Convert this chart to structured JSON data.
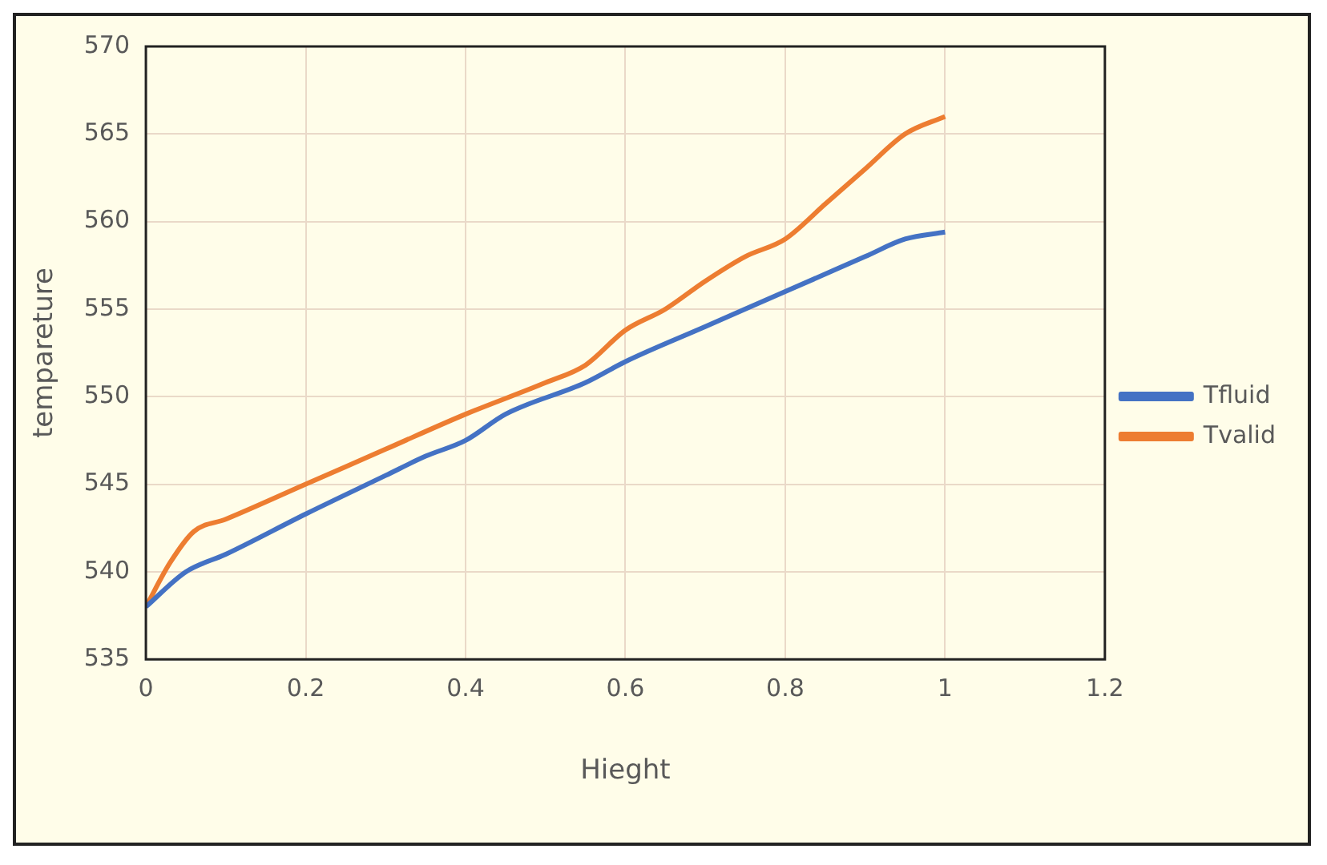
{
  "chart_data": {
    "type": "line",
    "xlabel": "Hieght",
    "ylabel": "tempareture",
    "xlim": [
      0,
      1.2
    ],
    "xticks": [
      0,
      0.2,
      0.4,
      0.6,
      0.8,
      1,
      1.2
    ],
    "ylim": [
      535,
      570
    ],
    "yticks": [
      535,
      540,
      545,
      550,
      555,
      560,
      565,
      570
    ],
    "grid": true,
    "legend": "right",
    "marker": "none",
    "line_style": "solid",
    "series": [
      {
        "name": "Tfluid",
        "color": "#4472c4",
        "x": [
          0,
          0.05,
          0.1,
          0.2,
          0.3,
          0.35,
          0.4,
          0.45,
          0.55,
          0.6,
          0.7,
          0.8,
          0.9,
          0.95,
          1
        ],
        "values": [
          538,
          540,
          541,
          543.3,
          545.5,
          546.6,
          547.5,
          549,
          550.8,
          552,
          554,
          556,
          558,
          559,
          559.4
        ]
      },
      {
        "name": "Tvalid",
        "color": "#ed7d31",
        "x": [
          0,
          0.03,
          0.06,
          0.1,
          0.2,
          0.3,
          0.4,
          0.5,
          0.55,
          0.6,
          0.65,
          0.7,
          0.75,
          0.8,
          0.85,
          0.9,
          0.95,
          1
        ],
        "values": [
          538,
          540.5,
          542.3,
          543,
          545,
          547,
          549,
          550.8,
          551.8,
          553.8,
          555,
          556.6,
          558,
          559,
          561,
          563,
          565,
          566
        ]
      }
    ]
  }
}
